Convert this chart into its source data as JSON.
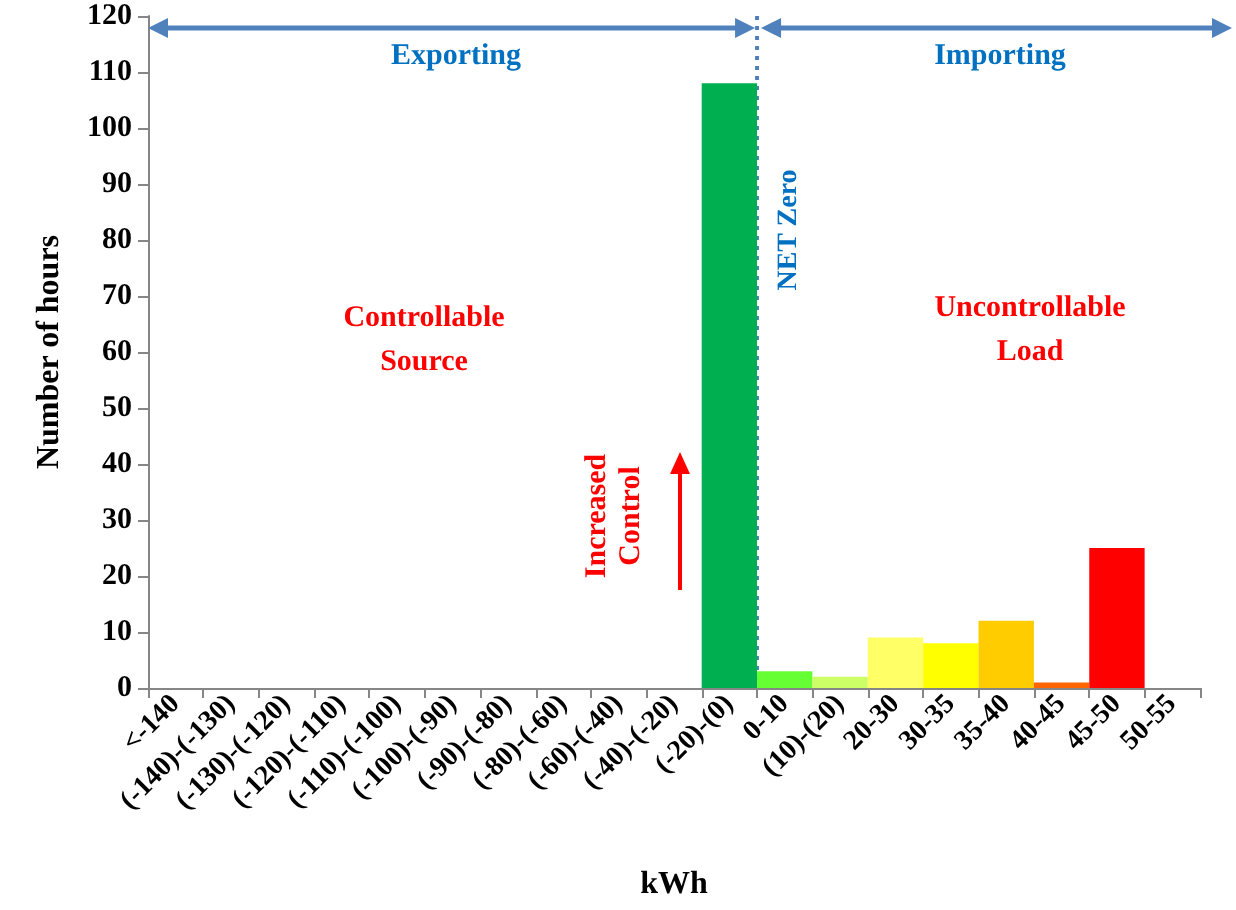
{
  "chart_data": {
    "type": "bar",
    "xlabel": "kWh",
    "ylabel": "Number of hours",
    "categories": [
      "<-140",
      "(-140)-(-130)",
      "(-130)-(-120)",
      "(-120)-(-110)",
      "(-110)-(-100)",
      "(-100)-(-90)",
      "(-90)-(-80)",
      "(-80)-(-60)",
      "(-60)-(-40)",
      "(-40)-(-20)",
      "(-20)-(0)",
      "0-10",
      "(10)-(20)",
      "20-30",
      "30-35",
      "35-40",
      "40-45",
      "45-50",
      "50-55"
    ],
    "values": [
      0,
      0,
      0,
      0,
      0,
      0,
      0,
      0,
      0,
      0,
      108,
      3,
      2,
      9,
      8,
      12,
      1,
      25,
      0
    ],
    "colors": [
      null,
      null,
      null,
      null,
      null,
      null,
      null,
      null,
      null,
      null,
      "#00b050",
      "#66ff33",
      "#ccff66",
      "#ffff66",
      "#ffff00",
      "#ffcc00",
      "#ff6600",
      "#ff0000",
      null
    ],
    "ylim": [
      0,
      120
    ],
    "yticks": [
      0,
      10,
      20,
      30,
      40,
      50,
      60,
      70,
      80,
      90,
      100,
      110,
      120
    ],
    "grid": false,
    "ref_lines": [
      {
        "axis": "x",
        "value": "0-10",
        "label": "NET Zero",
        "color": "#4f81bd",
        "line_style": "dotted"
      }
    ],
    "annotations": [
      "Exporting",
      "Importing",
      "Controllable Source",
      "Uncontrollable Load",
      "Increased Control"
    ]
  }
}
